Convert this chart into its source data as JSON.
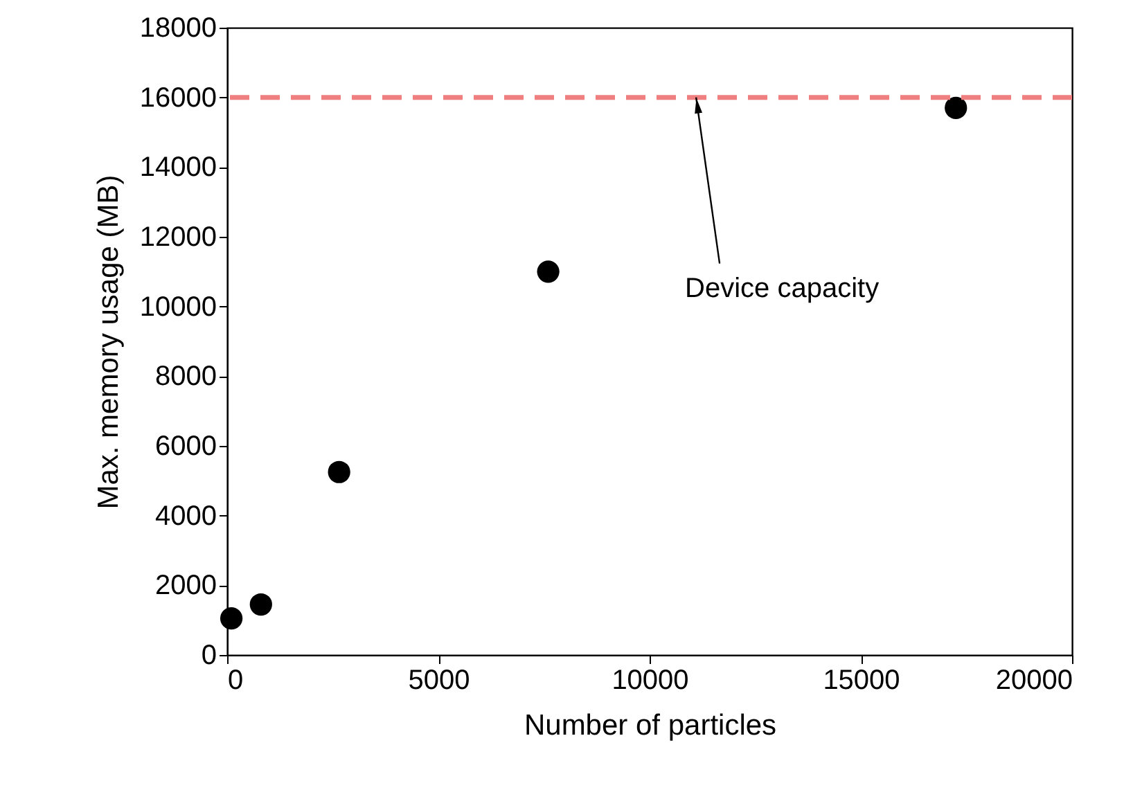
{
  "chart_data": {
    "type": "scatter",
    "xlabel": "Number of particles",
    "ylabel": "Max. memory usage (MB)",
    "x": [
      100,
      800,
      2650,
      7600,
      17250
    ],
    "series": [
      {
        "color": "#000000",
        "values": [
          1050,
          1450,
          5250,
          11000,
          15700
        ]
      }
    ],
    "marker": "circle",
    "xlim": [
      0,
      20000
    ],
    "ylim": [
      0,
      18000
    ],
    "xticks": [
      0,
      5000,
      10000,
      15000,
      20000
    ],
    "yticks": [
      0,
      2000,
      4000,
      6000,
      8000,
      10000,
      12000,
      14000,
      16000,
      18000
    ],
    "grid": false,
    "ref_lines": [
      {
        "axis": "y",
        "value": 16000,
        "color": "#f08080",
        "line_style": "dashed"
      }
    ],
    "annotations": [
      {
        "text": "Device capacity",
        "x": 11100,
        "y": 16000
      }
    ]
  }
}
